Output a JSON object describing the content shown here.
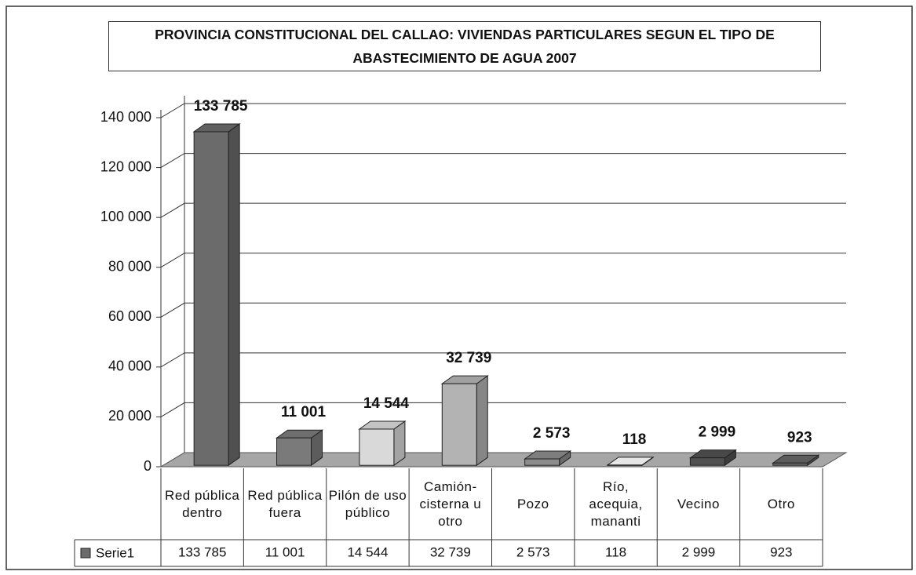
{
  "chart_data": {
    "type": "bar3d",
    "title": "PROVINCIA CONSTITUCIONAL DEL CALLAO: VIVIENDAS PARTICULARES SEGUN EL TIPO DE ABASTECIMIENTO DE AGUA 2007",
    "categories": [
      "Red pública dentro",
      "Red pública fuera",
      "Pilón de uso público",
      "Camión-cisterna u otro",
      "Pozo",
      "Río, acequia, mananti",
      "Vecino",
      "Otro"
    ],
    "series": [
      {
        "name": "Serie1",
        "colors": [
          "#6b6b6b",
          "#7a7a7a",
          "#d9d9d9",
          "#b3b3b3",
          "#8c8c8c",
          "#ffffff",
          "#505050",
          "#666666"
        ],
        "values": [
          133785,
          11001,
          14544,
          32739,
          2573,
          118,
          2999,
          923
        ],
        "value_labels": [
          "133 785",
          "11 001",
          "14 544",
          "32 739",
          "2 573",
          "118",
          "2 999",
          "923"
        ]
      }
    ],
    "ylim": [
      0,
      140000
    ],
    "yticks": [
      0,
      {
        "value": 20000,
        "label": "20 000"
      },
      {
        "value": 40000,
        "label": "40 000"
      },
      {
        "value": 60000,
        "label": "60 000"
      },
      {
        "value": 80000,
        "label": "80 000"
      },
      {
        "value": 100000,
        "label": "100 000"
      },
      {
        "value": 120000,
        "label": "120 000"
      },
      {
        "value": 140000,
        "label": "140 000"
      }
    ],
    "grid": true
  }
}
